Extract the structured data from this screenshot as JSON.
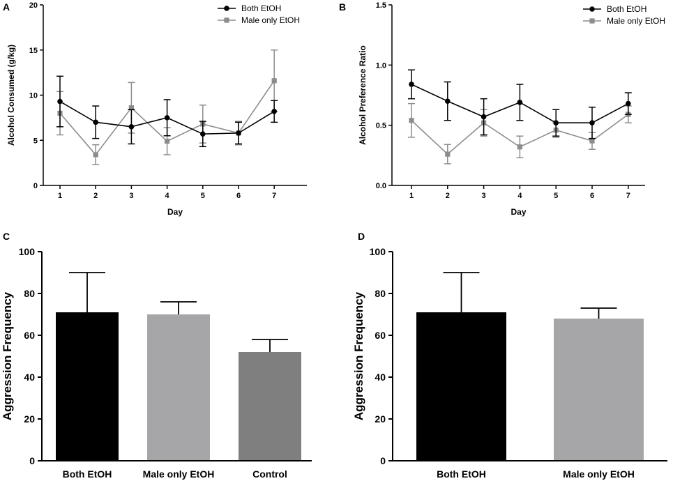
{
  "chart_data": [
    {
      "panel": "A",
      "type": "line",
      "x": [
        1,
        2,
        3,
        4,
        5,
        6,
        7
      ],
      "xlabel": "Day",
      "ylabel": "Alcohol Consumed (g/kg)",
      "ylim": [
        0,
        20
      ],
      "xticks": [
        "1",
        "2",
        "3",
        "4",
        "5",
        "6",
        "7"
      ],
      "yticks": [
        "0",
        "5",
        "10",
        "15",
        "20"
      ],
      "ytick_values": [
        0,
        5,
        10,
        15,
        20
      ],
      "series": [
        {
          "name": "Both EtOH",
          "color": "#000000",
          "marker": "circle",
          "values": [
            9.3,
            7.0,
            6.5,
            7.5,
            5.7,
            5.8,
            8.2
          ],
          "errors": [
            2.8,
            1.8,
            1.9,
            2.0,
            1.4,
            1.2,
            1.2
          ]
        },
        {
          "name": "Male only EtOH",
          "color": "#8c8c8c",
          "marker": "square",
          "values": [
            8.0,
            3.4,
            8.6,
            4.9,
            6.8,
            5.8,
            11.6
          ],
          "errors": [
            2.4,
            1.1,
            2.8,
            1.5,
            2.1,
            1.3,
            3.4
          ]
        }
      ]
    },
    {
      "panel": "B",
      "type": "line",
      "x": [
        1,
        2,
        3,
        4,
        5,
        6,
        7
      ],
      "xlabel": "Day",
      "ylabel": "Alcohol Preference Ratio",
      "ylim": [
        0,
        1.5
      ],
      "xticks": [
        "1",
        "2",
        "3",
        "4",
        "5",
        "6",
        "7"
      ],
      "yticks": [
        "0.0",
        "0.5",
        "1.0",
        "1.5"
      ],
      "ytick_values": [
        0,
        0.5,
        1.0,
        1.5
      ],
      "series": [
        {
          "name": "Both EtOH",
          "color": "#000000",
          "marker": "circle",
          "values": [
            0.84,
            0.7,
            0.57,
            0.69,
            0.52,
            0.52,
            0.68
          ],
          "errors": [
            0.12,
            0.16,
            0.15,
            0.15,
            0.11,
            0.13,
            0.09
          ]
        },
        {
          "name": "Male only EtOH",
          "color": "#8c8c8c",
          "marker": "square",
          "values": [
            0.54,
            0.26,
            0.52,
            0.32,
            0.46,
            0.37,
            0.59
          ],
          "errors": [
            0.14,
            0.08,
            0.11,
            0.09,
            0.06,
            0.07,
            0.07
          ]
        }
      ]
    },
    {
      "panel": "C",
      "type": "bar",
      "categories": [
        "Both EtOH",
        "Male only EtOH",
        "Control"
      ],
      "values": [
        71,
        70,
        52
      ],
      "errors": [
        19,
        6,
        6
      ],
      "colors": [
        "#000000",
        "#a6a6a8",
        "#7f7f7f"
      ],
      "ylabel": "Aggression Frequency",
      "ylim": [
        0,
        100
      ],
      "yticks": [
        "0",
        "20",
        "40",
        "60",
        "80",
        "100"
      ],
      "ytick_values": [
        0,
        20,
        40,
        60,
        80,
        100
      ]
    },
    {
      "panel": "D",
      "type": "bar",
      "categories": [
        "Both EtOH",
        "Male only EtOH"
      ],
      "values": [
        71,
        68
      ],
      "errors": [
        19,
        5
      ],
      "colors": [
        "#000000",
        "#a6a6a8"
      ],
      "ylabel": "Aggression Frequency",
      "ylim": [
        0,
        100
      ],
      "yticks": [
        "0",
        "20",
        "40",
        "60",
        "80",
        "100"
      ],
      "ytick_values": [
        0,
        20,
        40,
        60,
        80,
        100
      ]
    }
  ]
}
